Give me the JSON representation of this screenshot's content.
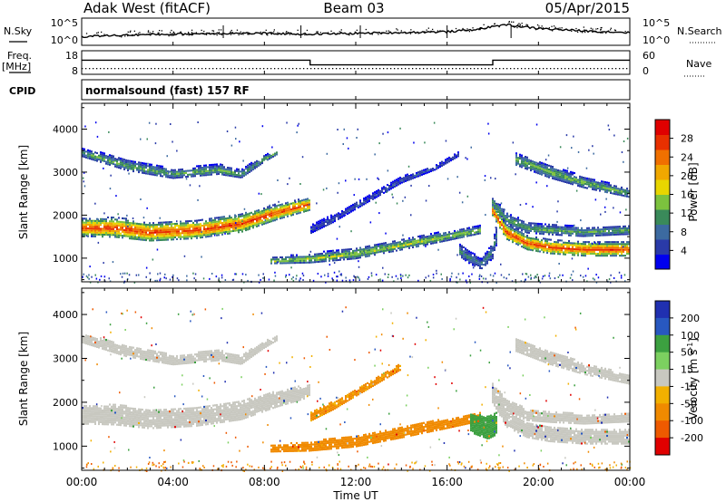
{
  "header": {
    "station": "Adak West (fitACF)",
    "beam": "Beam 03",
    "date": "05/Apr/2015"
  },
  "top_strips": {
    "noise": {
      "left_label": "N.Sky",
      "right_label": "N.Search",
      "left_ticks": [
        "10^5",
        "10^0"
      ],
      "right_ticks": [
        "10^5",
        "10^0"
      ]
    },
    "freq": {
      "left_label": "Freq.",
      "left_unit": "[MHz]",
      "left_ticks": [
        "18",
        "8"
      ],
      "right_label": "Nave",
      "right_ticks": [
        "60",
        "0"
      ]
    },
    "cpid": {
      "label": "CPID",
      "text": "normalsound (fast) 157 RF"
    }
  },
  "x_axis": {
    "label": "Time UT",
    "ticks": [
      "00:00",
      "04:00",
      "08:00",
      "12:00",
      "16:00",
      "20:00",
      "00:00"
    ]
  },
  "colors": {
    "power_scale": [
      "#0000ee",
      "#2a3aa8",
      "#3c6aa0",
      "#3a8a5a",
      "#7cc23e",
      "#e8d600",
      "#f0a800",
      "#f07000",
      "#e83000",
      "#e00000"
    ],
    "velocity_scale": [
      "#2030b0",
      "#2858c0",
      "#3ca040",
      "#7cd060",
      "#c8c8c0",
      "#f2b000",
      "#f08a00",
      "#ee5a00",
      "#e00000"
    ]
  },
  "chart_data": [
    {
      "type": "heatmap",
      "title": "",
      "xlabel": "Time UT",
      "ylabel": "Slant Range [km]",
      "x_unit": "hours UT",
      "xlim": [
        0,
        24
      ],
      "ylim": [
        450,
        4600
      ],
      "yticks": [
        "1000",
        "2000",
        "3000",
        "4000"
      ],
      "colorbar": {
        "label": "Power [dB]",
        "ticks": [
          "4",
          "8",
          "12",
          "16",
          "20",
          "24",
          "28"
        ],
        "range": [
          0,
          32
        ]
      },
      "bands": [
        {
          "name": "",
          "points": [
            [
              0.0,
              3450
            ],
            [
              2.0,
              3150
            ],
            [
              4.0,
              2950
            ],
            [
              6.0,
              3050
            ],
            [
              7.0,
              2950
            ],
            [
              8.0,
              3300
            ],
            [
              8.6,
              3450
            ]
          ],
          "width": [
            200,
            260,
            220,
            230,
            200,
            160,
            90
          ],
          "peak_power": 13
        },
        {
          "name": "",
          "points": [
            [
              0.0,
              1700
            ],
            [
              1.5,
              1700
            ],
            [
              3.0,
              1600
            ],
            [
              5.0,
              1650
            ],
            [
              7.0,
              1800
            ],
            [
              8.5,
              2050
            ],
            [
              10.0,
              2250
            ]
          ],
          "width": [
            420,
            460,
            430,
            420,
            420,
            360,
            300
          ],
          "peak_power": 28
        },
        {
          "name": "",
          "points": [
            [
              10.0,
              1650
            ],
            [
              11.0,
              1900
            ],
            [
              12.0,
              2200
            ],
            [
              13.0,
              2500
            ],
            [
              14.0,
              2800
            ],
            [
              15.5,
              3100
            ],
            [
              16.5,
              3400
            ]
          ],
          "width": [
            200,
            180,
            160,
            150,
            140,
            120,
            100
          ],
          "peak_power": 6
        },
        {
          "name": "",
          "points": [
            [
              8.3,
              930
            ],
            [
              10.0,
              980
            ],
            [
              12.0,
              1100
            ],
            [
              14.0,
              1300
            ],
            [
              16.0,
              1500
            ],
            [
              17.5,
              1650
            ]
          ],
          "width": [
            150,
            210,
            260,
            250,
            220,
            180
          ],
          "peak_power": 16
        },
        {
          "name": "",
          "points": [
            [
              16.5,
              1200
            ],
            [
              17.0,
              1000
            ],
            [
              17.5,
              850
            ],
            [
              18.0,
              1150
            ],
            [
              18.2,
              1600
            ]
          ],
          "width": [
            300,
            300,
            240,
            360,
            500
          ],
          "peak_power": 10
        },
        {
          "name": "",
          "points": [
            [
              18.0,
              2300
            ],
            [
              18.6,
              1900
            ],
            [
              19.5,
              1700
            ],
            [
              20.5,
              1650
            ],
            [
              22.0,
              1600
            ],
            [
              24.0,
              1650
            ]
          ],
          "width": [
            250,
            300,
            260,
            240,
            220,
            220
          ],
          "peak_power": 13
        },
        {
          "name": "",
          "points": [
            [
              18.0,
              2100
            ],
            [
              18.6,
              1600
            ],
            [
              19.5,
              1350
            ],
            [
              20.5,
              1250
            ],
            [
              22.0,
              1200
            ],
            [
              24.0,
              1200
            ]
          ],
          "width": [
            250,
            350,
            330,
            320,
            330,
            330
          ],
          "peak_power": 28
        },
        {
          "name": "",
          "points": [
            [
              19.0,
              3300
            ],
            [
              20.5,
              3000
            ],
            [
              22.0,
              2750
            ],
            [
              24.0,
              2500
            ]
          ],
          "width": [
            300,
            300,
            260,
            200
          ],
          "peak_power": 14
        }
      ]
    },
    {
      "type": "heatmap",
      "title": "",
      "xlabel": "Time UT",
      "ylabel": "Slant Range [km]",
      "x_unit": "hours UT",
      "xlim": [
        0,
        24
      ],
      "ylim": [
        450,
        4600
      ],
      "yticks": [
        "1000",
        "2000",
        "3000",
        "4000"
      ],
      "colorbar": {
        "label": "Velocity [m s",
        "label_superscript": "-1",
        "label_close": "]",
        "ticks": [
          "200",
          "100",
          "50",
          "15",
          "-15",
          "-50",
          "-100",
          "-200"
        ],
        "range": [
          -250,
          250
        ]
      },
      "bands": [
        {
          "name": "",
          "points": [
            [
              0.0,
              3450
            ],
            [
              2.0,
              3150
            ],
            [
              4.0,
              2950
            ],
            [
              6.0,
              3050
            ],
            [
              7.0,
              2950
            ],
            [
              8.0,
              3300
            ],
            [
              8.6,
              3450
            ]
          ],
          "width": [
            200,
            260,
            220,
            230,
            200,
            160,
            90
          ],
          "velocity": 0
        },
        {
          "name": "",
          "points": [
            [
              0.0,
              1700
            ],
            [
              1.5,
              1700
            ],
            [
              3.0,
              1600
            ],
            [
              5.0,
              1650
            ],
            [
              7.0,
              1800
            ],
            [
              8.5,
              2050
            ],
            [
              10.0,
              2250
            ]
          ],
          "width": [
            420,
            460,
            430,
            420,
            420,
            360,
            300
          ],
          "velocity": 0
        },
        {
          "name": "",
          "points": [
            [
              10.0,
              1650
            ],
            [
              11.0,
              1900
            ],
            [
              12.0,
              2200
            ],
            [
              13.0,
              2500
            ],
            [
              14.0,
              2800
            ]
          ],
          "width": [
            200,
            180,
            160,
            150,
            140
          ],
          "velocity": -35
        },
        {
          "name": "",
          "points": [
            [
              8.3,
              930
            ],
            [
              10.0,
              980
            ],
            [
              12.0,
              1100
            ],
            [
              14.0,
              1300
            ],
            [
              16.0,
              1500
            ],
            [
              17.5,
              1650
            ]
          ],
          "width": [
            150,
            210,
            260,
            250,
            220,
            180
          ],
          "velocity": -45
        },
        {
          "name": "",
          "points": [
            [
              17.0,
              1500
            ],
            [
              17.8,
              1400
            ],
            [
              18.2,
              1500
            ]
          ],
          "width": [
            400,
            500,
            500
          ],
          "velocity": 40
        },
        {
          "name": "",
          "points": [
            [
              18.0,
              2300
            ],
            [
              18.6,
              1900
            ],
            [
              19.5,
              1700
            ],
            [
              20.5,
              1650
            ],
            [
              22.0,
              1600
            ],
            [
              24.0,
              1650
            ]
          ],
          "width": [
            250,
            300,
            260,
            240,
            220,
            220
          ],
          "velocity": 0
        },
        {
          "name": "",
          "points": [
            [
              18.0,
              2100
            ],
            [
              18.6,
              1600
            ],
            [
              19.5,
              1350
            ],
            [
              20.5,
              1250
            ],
            [
              22.0,
              1200
            ],
            [
              24.0,
              1200
            ]
          ],
          "width": [
            250,
            350,
            330,
            320,
            330,
            330
          ],
          "velocity": 0
        },
        {
          "name": "",
          "points": [
            [
              19.0,
              3300
            ],
            [
              20.5,
              3000
            ],
            [
              22.0,
              2750
            ],
            [
              24.0,
              2500
            ]
          ],
          "width": [
            300,
            300,
            260,
            200
          ],
          "velocity": 0
        }
      ]
    },
    {
      "type": "line",
      "title": "",
      "series": [
        {
          "name": "",
          "x": [
            0,
            2,
            4,
            6,
            8,
            10,
            12,
            14,
            16,
            17,
            18,
            18.5,
            19,
            20,
            22,
            24
          ],
          "values": [
            0.2,
            0.3,
            0.35,
            0.4,
            0.4,
            0.35,
            0.4,
            0.45,
            0.5,
            0.6,
            0.8,
            0.95,
            0.85,
            0.7,
            0.55,
            0.45
          ]
        }
      ],
      "xlim": [
        0,
        24
      ]
    },
    {
      "type": "line",
      "title": "",
      "series": [
        {
          "name": "",
          "x": [
            0,
            10,
            10,
            18,
            18,
            24
          ],
          "values": [
            14,
            14,
            12,
            12,
            14,
            14
          ]
        }
      ],
      "xlim": [
        0,
        24
      ]
    }
  ]
}
